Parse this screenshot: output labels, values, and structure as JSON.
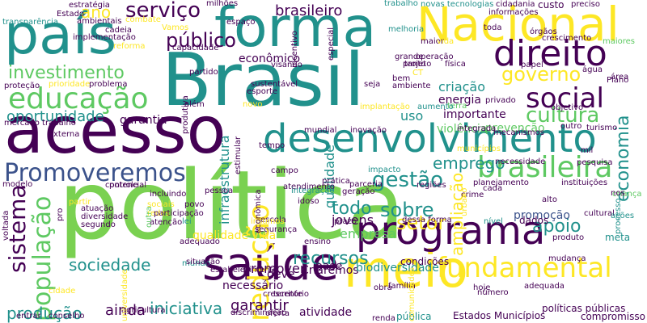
{
  "colors": {
    "background": "#ffffff",
    "palette": [
      "#440154",
      "#3b528b",
      "#21918c",
      "#5ec962",
      "#fde725",
      "#2a788e",
      "#bddf26",
      "#7ad151"
    ]
  },
  "words": [
    {
      "text": "política"
    },
    {
      "text": "Brasil"
    },
    {
      "text": "acesso"
    },
    {
      "text": "país"
    },
    {
      "text": "forma"
    },
    {
      "text": "Nacional"
    },
    {
      "text": "meio"
    },
    {
      "text": "saúde"
    },
    {
      "text": "desenvolvimento"
    },
    {
      "text": "programa"
    },
    {
      "text": "direito"
    },
    {
      "text": "educação"
    },
    {
      "text": "Promoveremos"
    },
    {
      "text": "brasileira"
    },
    {
      "text": "fundamental"
    },
    {
      "text": "social"
    },
    {
      "text": "sistema"
    },
    {
      "text": "população"
    },
    {
      "text": "redução"
    },
    {
      "text": "serviço"
    },
    {
      "text": "público"
    },
    {
      "text": "investimento"
    },
    {
      "text": "cultura"
    },
    {
      "text": "governo"
    },
    {
      "text": "economia"
    },
    {
      "text": "setor"
    },
    {
      "text": "sobre"
    },
    {
      "text": "recursos"
    },
    {
      "text": "gestão"
    },
    {
      "text": "emprego"
    },
    {
      "text": "sociedade"
    },
    {
      "text": "produção"
    },
    {
      "text": "iniciativa"
    },
    {
      "text": "ampliação"
    },
    {
      "text": "oportunidade"
    },
    {
      "text": "brasileiro"
    },
    {
      "text": "ano"
    },
    {
      "text": "apoio"
    },
    {
      "text": "todo"
    },
    {
      "text": "infraestrutura"
    },
    {
      "text": "qualidade"
    },
    {
      "text": "criação"
    },
    {
      "text": "energia"
    },
    {
      "text": "importante"
    },
    {
      "text": "garantia"
    },
    {
      "text": "econômico"
    },
    {
      "text": "uso"
    },
    {
      "text": "jovens"
    },
    {
      "text": "empresa"
    },
    {
      "text": "promoção"
    },
    {
      "text": "ainda"
    },
    {
      "text": "garantir"
    },
    {
      "text": "atividade"
    },
    {
      "text": "Estados Municípios"
    },
    {
      "text": "promover"
    },
    {
      "text": "necessário"
    },
    {
      "text": "deve"
    },
    {
      "text": "base"
    },
    {
      "text": "condições"
    },
    {
      "text": "prevenção"
    },
    {
      "text": "violência"
    },
    {
      "text": "transparência"
    },
    {
      "text": "estratégia"
    },
    {
      "text": "trabalho"
    },
    {
      "text": "cidade"
    },
    {
      "text": "mundo"
    },
    {
      "text": "adequado"
    },
    {
      "text": "lei"
    },
    {
      "text": "povo"
    },
    {
      "text": "pessoa"
    },
    {
      "text": "controle"
    },
    {
      "text": "combate"
    },
    {
      "text": "custo"
    },
    {
      "text": "preciso"
    },
    {
      "text": "processo"
    },
    {
      "text": "área"
    },
    {
      "text": "crescimento"
    },
    {
      "text": "maior"
    },
    {
      "text": "nível"
    },
    {
      "text": "políticas públicas"
    },
    {
      "text": "compromisso"
    },
    {
      "text": "planejamento"
    },
    {
      "text": "instituições"
    },
    {
      "text": "turismo"
    },
    {
      "text": "inovação"
    },
    {
      "text": "mundial"
    },
    {
      "text": "integrada"
    },
    {
      "text": "família"
    },
    {
      "text": "hoje"
    },
    {
      "text": "território"
    },
    {
      "text": "parceria"
    },
    {
      "text": "prática"
    },
    {
      "text": "atendimento"
    },
    {
      "text": "necessidade"
    },
    {
      "text": "grande"
    },
    {
      "text": "projeto"
    },
    {
      "text": "física"
    },
    {
      "text": "tanto"
    },
    {
      "text": "toda"
    },
    {
      "text": "cultural"
    },
    {
      "text": "crime"
    },
    {
      "text": "cada"
    },
    {
      "text": "alto"
    },
    {
      "text": "dados"
    },
    {
      "text": "produto"
    },
    {
      "text": "meta"
    },
    {
      "text": "ações"
    },
    {
      "text": "criança"
    },
    {
      "text": "escola"
    },
    {
      "text": "segurança"
    },
    {
      "text": "regiões"
    },
    {
      "text": "esporte"
    },
    {
      "text": "prioridade"
    },
    {
      "text": "problema"
    },
    {
      "text": "proteção"
    },
    {
      "text": "além"
    },
    {
      "text": "visando"
    },
    {
      "text": "capacidade"
    },
    {
      "text": "informações"
    },
    {
      "text": "cidadania"
    },
    {
      "text": "novas tecnologias"
    },
    {
      "text": "Estado"
    },
    {
      "text": "milhões"
    },
    {
      "text": "sociais"
    },
    {
      "text": "redes"
    },
    {
      "text": "mudança"
    },
    {
      "text": "Criaremos"
    },
    {
      "text": "biodiversidade"
    },
    {
      "text": "obra"
    },
    {
      "text": "oferta"
    },
    {
      "text": "renda"
    },
    {
      "text": "pública"
    },
    {
      "text": "vida"
    },
    {
      "text": "melhoria"
    },
    {
      "text": "espaço"
    },
    {
      "text": "incentivo"
    },
    {
      "text": "especial"
    },
    {
      "text": "seja"
    },
    {
      "text": "privado"
    },
    {
      "text": "terra"
    },
    {
      "text": "mecanismos"
    },
    {
      "text": "aumento"
    },
    {
      "text": "bem"
    },
    {
      "text": "ambiente"
    },
    {
      "text": "integração"
    },
    {
      "text": "idoso"
    },
    {
      "text": "campo"
    },
    {
      "text": "impacto"
    },
    {
      "text": "pesquisa"
    },
    {
      "text": "urbano"
    },
    {
      "text": "implantação"
    },
    {
      "text": "novo"
    },
    {
      "text": "geração"
    },
    {
      "text": "sustentável"
    },
    {
      "text": "partido"
    },
    {
      "text": "insumos"
    },
    {
      "text": "ensino"
    },
    {
      "text": "dessa forma"
    },
    {
      "text": "incluindo"
    },
    {
      "text": "potencial"
    },
    {
      "text": "modelo"
    },
    {
      "text": "participação"
    },
    {
      "text": "atenção"
    },
    {
      "text": "outra"
    },
    {
      "text": "atuação"
    },
    {
      "text": "diversidade"
    },
    {
      "text": "segundo"
    },
    {
      "text": "pro"
    },
    {
      "text": "voltada"
    },
    {
      "text": "partir"
    },
    {
      "text": "externa"
    },
    {
      "text": "mercado trabalho"
    },
    {
      "text": "ambientais"
    },
    {
      "text": "maiores"
    },
    {
      "text": "cadeia"
    },
    {
      "text": "crescente"
    },
    {
      "text": "agricultura"
    },
    {
      "text": "entrar"
    },
    {
      "text": "conselho"
    },
    {
      "text": "universidade"
    },
    {
      "text": "discriminação"
    },
    {
      "text": "comunidades"
    },
    {
      "text": "qualidade vida"
    },
    {
      "text": "implementação"
    },
    {
      "text": "reforma"
    },
    {
      "text": "Vamos"
    },
    {
      "text": "Plano"
    },
    {
      "text": "água"
    },
    {
      "text": "estabelecimento"
    },
    {
      "text": "situação"
    },
    {
      "text": "econômica"
    },
    {
      "text": "produtiva"
    },
    {
      "text": "prazo"
    },
    {
      "text": "número"
    },
    {
      "text": "órgãos"
    },
    {
      "text": "adequada"
    },
    {
      "text": "operação"
    },
    {
      "text": "CT"
    },
    {
      "text": "estimular"
    },
    {
      "text": "tempo"
    },
    {
      "text": "outro"
    },
    {
      "text": "municípios"
    },
    {
      "text": "papel"
    },
    {
      "text": "objetivo"
    },
    {
      "text": "mil"
    },
    {
      "text": "nos"
    }
  ]
}
